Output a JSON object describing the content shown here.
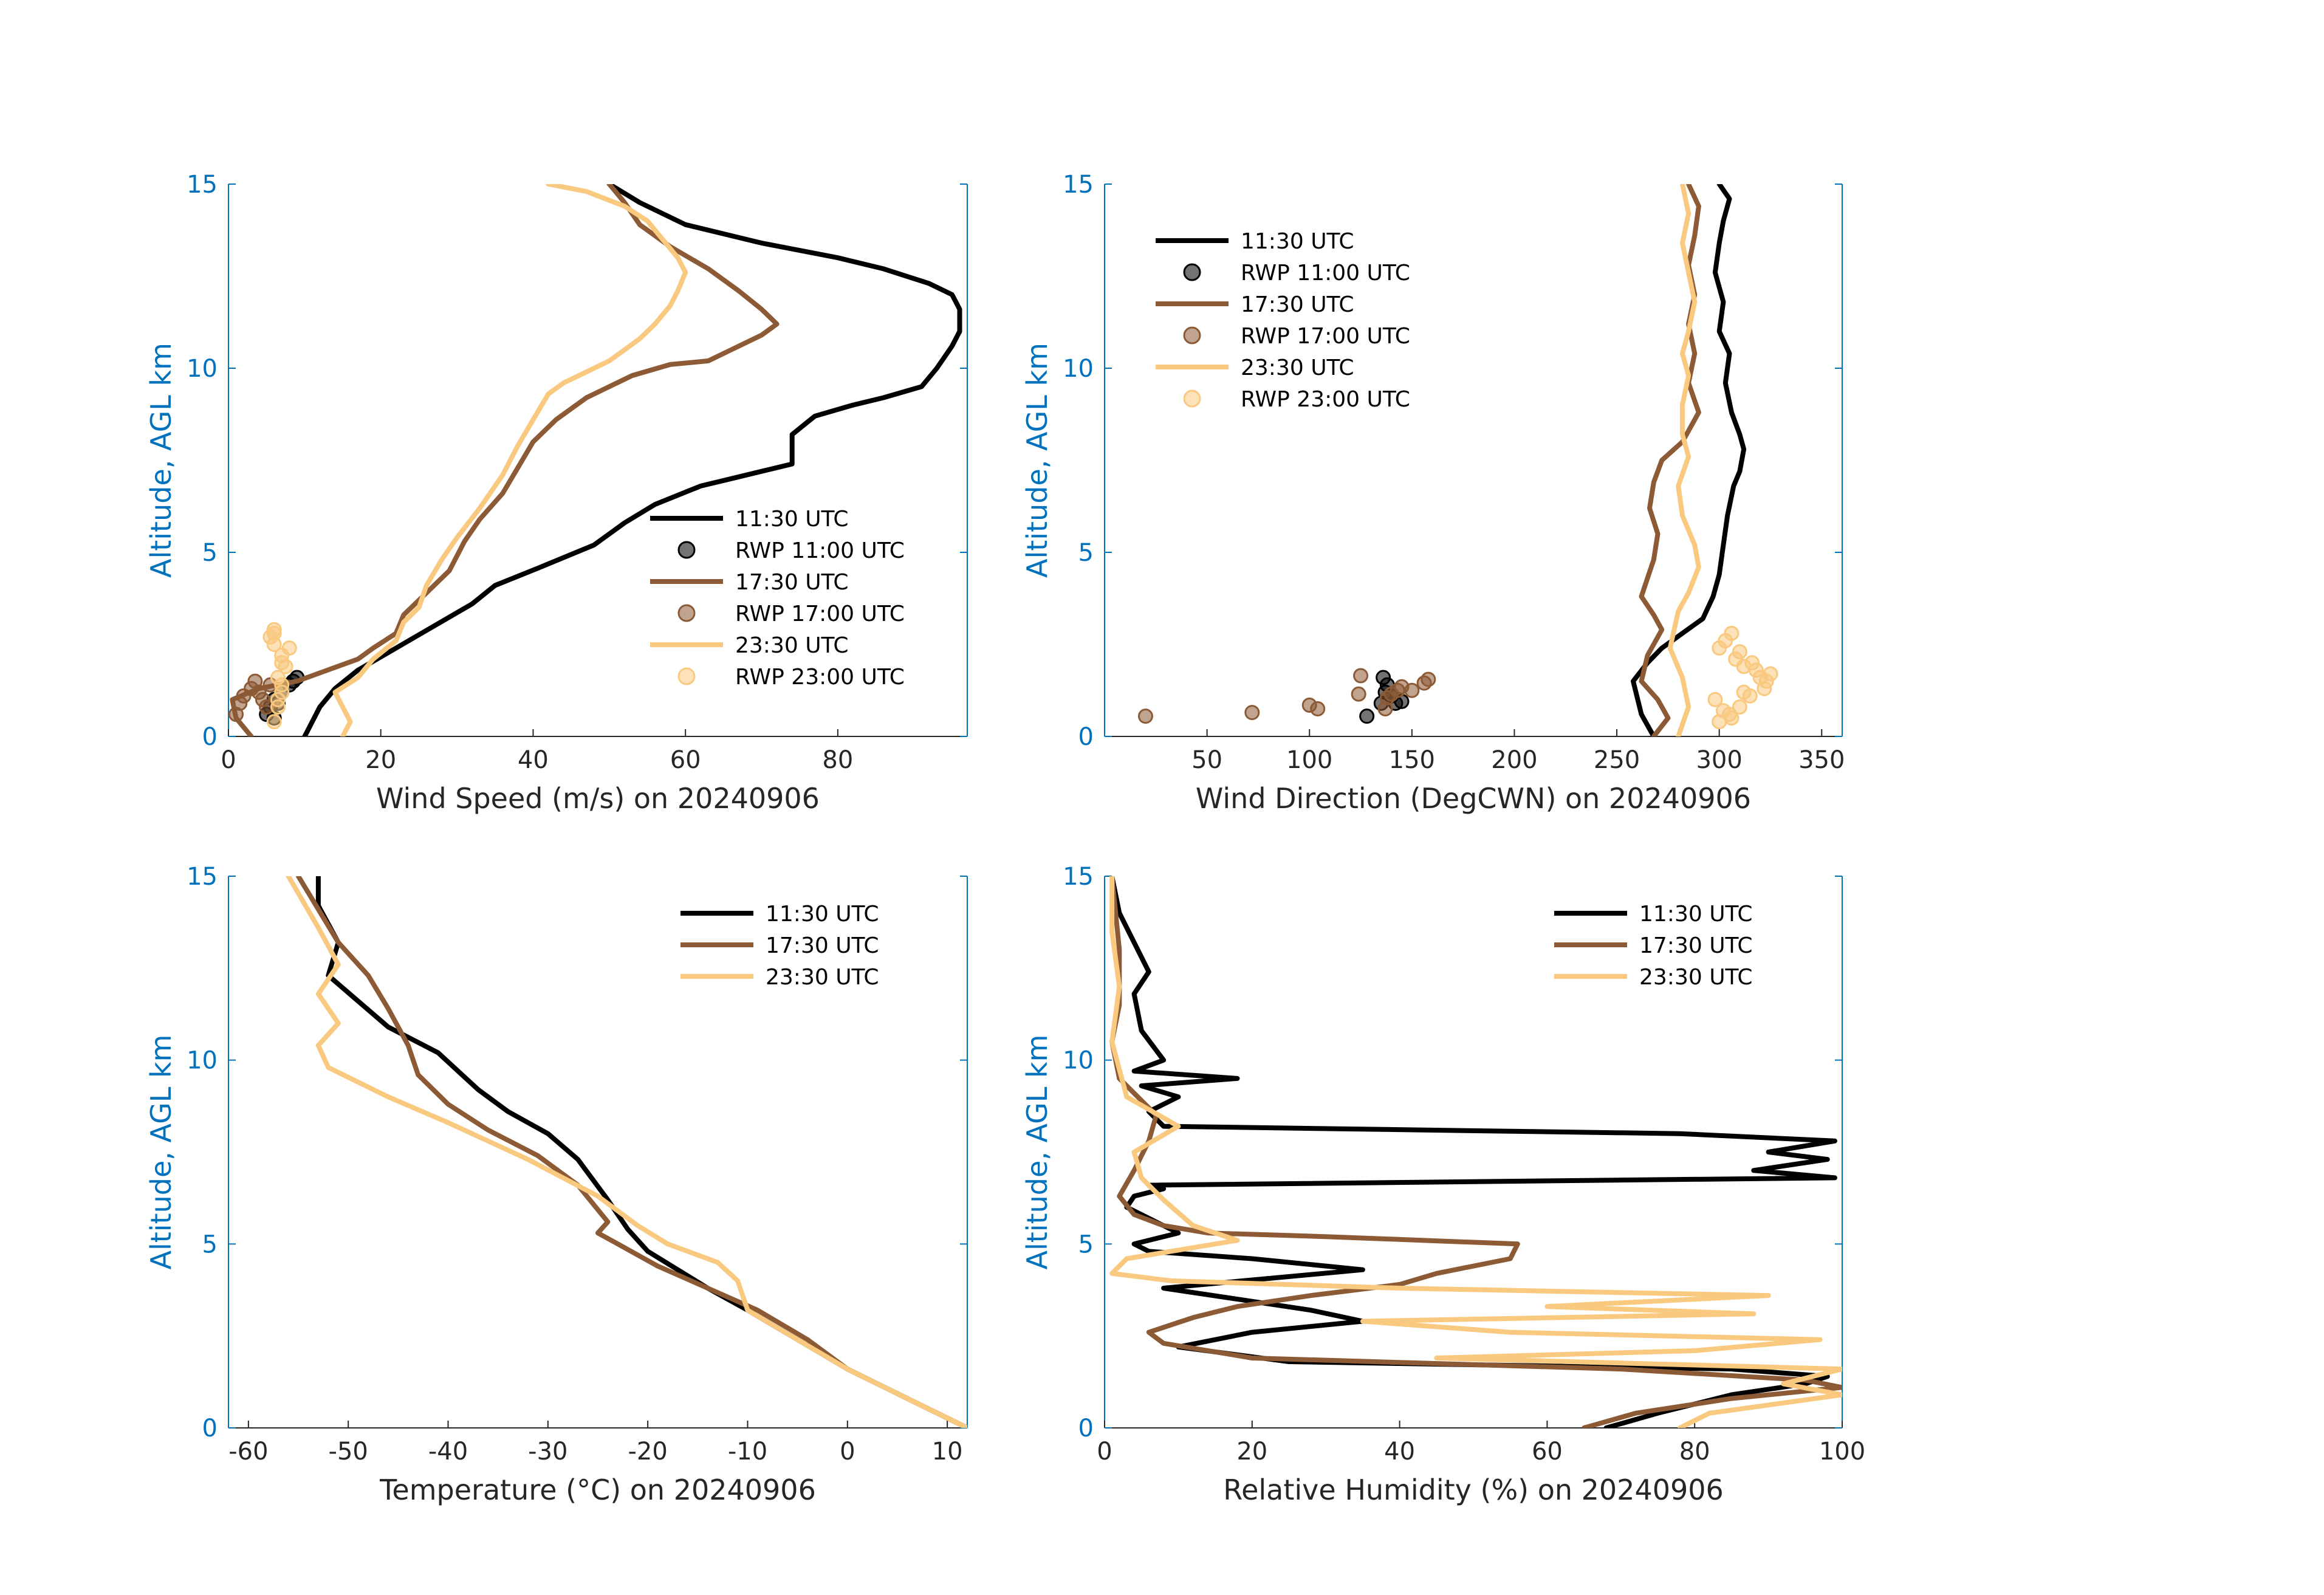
{
  "colors": {
    "c1130": "#000000",
    "c1730": "#8c5a35",
    "c2330": "#f9c97f",
    "axis_y": "#0072bd",
    "axis_x": "#262626"
  },
  "chart_data": [
    {
      "id": "ws",
      "type": "line",
      "xlabel": "Wind Speed (m/s) on 20240906",
      "ylabel": "Altitude, AGL km",
      "xlim": [
        0,
        97
      ],
      "ylim": [
        0,
        15
      ],
      "xticks": [
        0,
        20,
        40,
        60,
        80
      ],
      "xtick_labels": [
        "0",
        "20",
        "40",
        "60",
        "80"
      ],
      "yticks": [
        0,
        5,
        10,
        15
      ],
      "ytick_labels": [
        "0",
        "5",
        "10",
        "15"
      ],
      "legend": {
        "position": "lower-right",
        "entries": [
          "11:30 UTC",
          "RWP 11:00 UTC",
          "17:30 UTC",
          "RWP 17:00 UTC",
          "23:30 UTC",
          "RWP 23:00 UTC"
        ]
      },
      "series": [
        {
          "name": "11:30 UTC",
          "color": "#000000",
          "x": [
            10,
            11,
            12,
            14,
            17,
            22,
            27,
            32,
            35,
            41,
            48,
            52,
            56,
            62,
            66,
            70,
            74,
            74,
            77,
            82,
            86,
            91,
            93,
            95,
            96,
            96,
            95,
            92,
            86,
            80,
            70,
            60,
            54,
            50
          ],
          "y": [
            0,
            0.4,
            0.8,
            1.3,
            1.8,
            2.4,
            3.0,
            3.6,
            4.1,
            4.6,
            5.2,
            5.8,
            6.3,
            6.8,
            7.0,
            7.2,
            7.4,
            8.2,
            8.7,
            9.0,
            9.2,
            9.5,
            10.0,
            10.6,
            11.0,
            11.6,
            12.0,
            12.3,
            12.7,
            13.0,
            13.4,
            13.9,
            14.5,
            15.0
          ]
        },
        {
          "name": "RWP 11:00 UTC",
          "color": "#000000",
          "marker": true,
          "x": [
            5,
            6,
            6.5,
            7,
            8,
            8.5,
            9,
            5.5,
            6
          ],
          "y": [
            0.6,
            0.5,
            0.9,
            1.2,
            1.4,
            1.5,
            1.6,
            0.8,
            1.0
          ]
        },
        {
          "name": "17:30 UTC",
          "color": "#8c5a35",
          "x": [
            3,
            1,
            0.5,
            4,
            9,
            13,
            17,
            19,
            22,
            23,
            26,
            29,
            31,
            33,
            36,
            38,
            40,
            43,
            47,
            53,
            58,
            63,
            66,
            70,
            72,
            70,
            67,
            63,
            58,
            54,
            52,
            50
          ],
          "y": [
            0,
            0.5,
            1.0,
            1.3,
            1.5,
            1.8,
            2.1,
            2.4,
            2.8,
            3.3,
            3.9,
            4.5,
            5.3,
            5.9,
            6.6,
            7.3,
            8.0,
            8.6,
            9.2,
            9.8,
            10.1,
            10.2,
            10.5,
            10.9,
            11.2,
            11.6,
            12.1,
            12.7,
            13.3,
            13.9,
            14.5,
            15.0
          ]
        },
        {
          "name": "RWP 17:00 UTC",
          "color": "#8c5a35",
          "marker": true,
          "x": [
            1,
            1.5,
            2,
            3,
            3.5,
            4,
            4.5,
            5,
            5.5
          ],
          "y": [
            0.6,
            0.9,
            1.1,
            1.3,
            1.5,
            1.2,
            1.0,
            0.8,
            1.4
          ]
        },
        {
          "name": "23:30 UTC",
          "color": "#f9c97f",
          "x": [
            15,
            16,
            15,
            14,
            17,
            19,
            22,
            23,
            25,
            26,
            28,
            30,
            33,
            36,
            38,
            40,
            42,
            44,
            47,
            50,
            52,
            54,
            56,
            58,
            59,
            60,
            59,
            57,
            55,
            52,
            47,
            42
          ],
          "y": [
            0,
            0.4,
            0.8,
            1.2,
            1.6,
            2.1,
            2.6,
            3.1,
            3.5,
            4.1,
            4.8,
            5.4,
            6.2,
            7.1,
            7.9,
            8.6,
            9.3,
            9.6,
            9.9,
            10.2,
            10.5,
            10.8,
            11.2,
            11.7,
            12.1,
            12.6,
            13.0,
            13.5,
            14.0,
            14.4,
            14.8,
            15.0
          ]
        },
        {
          "name": "RWP 23:00 UTC",
          "color": "#f9c97f",
          "marker": true,
          "x": [
            6,
            6.5,
            7,
            6.5,
            7.5,
            7,
            6,
            5.5,
            6,
            6.5,
            7,
            8,
            7,
            6
          ],
          "y": [
            0.4,
            0.8,
            1.2,
            1.6,
            1.9,
            2.2,
            2.5,
            2.7,
            2.9,
            1.0,
            1.4,
            2.4,
            2.0,
            2.8
          ]
        }
      ]
    },
    {
      "id": "wd",
      "type": "line",
      "xlabel": "Wind Direction (DegCWN) on 20240906",
      "ylabel": "Altitude, AGL km",
      "xlim": [
        0,
        360
      ],
      "ylim": [
        0,
        15
      ],
      "xticks": [
        50,
        100,
        150,
        200,
        250,
        300,
        350
      ],
      "xtick_labels": [
        "50",
        "100",
        "150",
        "200",
        "250",
        "300",
        "350"
      ],
      "yticks": [
        0,
        5,
        10,
        15
      ],
      "ytick_labels": [
        "0",
        "5",
        "10",
        "15"
      ],
      "legend": {
        "position": "top-left",
        "entries": [
          "11:30 UTC",
          "RWP 11:00 UTC",
          "17:30 UTC",
          "RWP 17:00 UTC",
          "23:30 UTC",
          "RWP 23:00 UTC"
        ]
      },
      "series": [
        {
          "name": "11:30 UTC",
          "color": "#000000",
          "x": [
            268,
            262,
            258,
            265,
            272,
            282,
            292,
            297,
            300,
            302,
            304,
            307,
            310,
            312,
            310,
            306,
            303,
            305,
            300,
            302,
            298,
            300,
            302,
            305,
            300
          ],
          "y": [
            0,
            0.6,
            1.5,
            2.0,
            2.4,
            2.8,
            3.2,
            3.8,
            4.4,
            5.2,
            6.0,
            6.8,
            7.2,
            7.8,
            8.2,
            8.8,
            9.6,
            10.4,
            11.0,
            11.8,
            12.6,
            13.4,
            14.0,
            14.6,
            15.0
          ]
        },
        {
          "name": "RWP 11:00 UTC",
          "color": "#000000",
          "marker": true,
          "x": [
            128,
            135,
            137,
            138,
            140,
            142,
            145,
            136
          ],
          "y": [
            0.55,
            0.9,
            1.2,
            1.4,
            1.1,
            0.9,
            0.95,
            1.6
          ]
        },
        {
          "name": "17:30 UTC",
          "color": "#8c5a35",
          "x": [
            268,
            275,
            270,
            262,
            265,
            272,
            268,
            262,
            265,
            268,
            270,
            266,
            268,
            272,
            282,
            290,
            285,
            288,
            285,
            288,
            285,
            288,
            290,
            285
          ],
          "y": [
            0,
            0.5,
            1.0,
            1.5,
            2.2,
            2.9,
            3.3,
            3.8,
            4.3,
            4.8,
            5.5,
            6.2,
            6.9,
            7.5,
            8.0,
            8.8,
            9.6,
            10.4,
            11.2,
            12.0,
            12.8,
            13.6,
            14.4,
            15.0
          ]
        },
        {
          "name": "RWP 17:00 UTC",
          "color": "#8c5a35",
          "marker": true,
          "x": [
            20,
            72,
            100,
            104,
            124,
            125,
            138,
            140,
            145,
            150,
            156,
            158,
            143,
            137
          ],
          "y": [
            0.55,
            0.65,
            0.85,
            0.75,
            1.15,
            1.65,
            1.05,
            1.15,
            1.35,
            1.25,
            1.45,
            1.55,
            1.25,
            0.75
          ]
        },
        {
          "name": "23:30 UTC",
          "color": "#f9c97f",
          "x": [
            280,
            285,
            282,
            276,
            280,
            285,
            290,
            288,
            282,
            280,
            285,
            282,
            282,
            285,
            282,
            285,
            288,
            285,
            282,
            285,
            282
          ],
          "y": [
            0,
            0.8,
            1.6,
            2.4,
            3.4,
            3.9,
            4.6,
            5.2,
            6.0,
            6.8,
            7.6,
            8.2,
            9.0,
            9.8,
            10.4,
            11.0,
            11.8,
            12.6,
            13.4,
            14.2,
            15.0
          ]
        },
        {
          "name": "RWP 23:00 UTC",
          "color": "#f9c97f",
          "marker": true,
          "x": [
            300,
            305,
            310,
            315,
            322,
            320,
            312,
            308,
            300,
            303,
            306,
            310,
            316,
            318,
            298,
            302,
            325,
            323,
            306,
            312
          ],
          "y": [
            0.4,
            0.6,
            0.8,
            1.1,
            1.3,
            1.6,
            1.9,
            2.1,
            2.4,
            2.6,
            2.8,
            2.3,
            2.0,
            1.8,
            1.0,
            0.7,
            1.7,
            1.5,
            0.5,
            1.2
          ]
        }
      ]
    },
    {
      "id": "temp",
      "type": "line",
      "xlabel": "Temperature (°C) on 20240906",
      "ylabel": "Altitude, AGL km",
      "xlim": [
        -62,
        12
      ],
      "ylim": [
        0,
        15
      ],
      "xticks": [
        -60,
        -50,
        -40,
        -30,
        -20,
        -10,
        0,
        10
      ],
      "xtick_labels": [
        "-60",
        "-50",
        "-40",
        "-30",
        "-20",
        "-10",
        "0",
        "10"
      ],
      "yticks": [
        0,
        5,
        10,
        15
      ],
      "ytick_labels": [
        "0",
        "5",
        "10",
        "15"
      ],
      "legend": {
        "position": "top-right",
        "entries": [
          "11:30 UTC",
          "17:30 UTC",
          "23:30 UTC"
        ]
      },
      "series": [
        {
          "name": "11:30 UTC",
          "color": "#000000",
          "x": [
            12,
            6,
            0,
            -5,
            -10,
            -14,
            -17,
            -20,
            -22,
            -24,
            -27,
            -30,
            -34,
            -37,
            -41,
            -46,
            -49,
            -52,
            -51,
            -53,
            -53
          ],
          "y": [
            0,
            0.8,
            1.6,
            2.4,
            3.2,
            3.8,
            4.3,
            4.8,
            5.4,
            6.2,
            7.3,
            8.0,
            8.6,
            9.2,
            10.2,
            10.9,
            11.6,
            12.3,
            13.2,
            14.2,
            15.0
          ]
        },
        {
          "name": "17:30 UTC",
          "color": "#8c5a35",
          "x": [
            12,
            6,
            0,
            -4,
            -9,
            -14,
            -19,
            -23,
            -25,
            -24,
            -27,
            -31,
            -36,
            -40,
            -43,
            -44,
            -46,
            -48,
            -51,
            -53,
            -55
          ],
          "y": [
            0,
            0.8,
            1.6,
            2.4,
            3.2,
            3.8,
            4.4,
            5.0,
            5.3,
            5.6,
            6.6,
            7.4,
            8.1,
            8.8,
            9.6,
            10.4,
            11.4,
            12.3,
            13.2,
            14.1,
            15.0
          ]
        },
        {
          "name": "23:30 UTC",
          "color": "#f9c97f",
          "x": [
            12,
            6,
            0,
            -5,
            -10,
            -11,
            -13,
            -18,
            -21,
            -25,
            -32,
            -40,
            -46,
            -52,
            -53,
            -51,
            -53,
            -51,
            -53,
            -56
          ],
          "y": [
            0,
            0.8,
            1.6,
            2.4,
            3.2,
            4.0,
            4.5,
            5.0,
            5.5,
            6.3,
            7.3,
            8.3,
            9.0,
            9.8,
            10.4,
            11.0,
            11.8,
            12.6,
            13.6,
            15.0
          ]
        }
      ]
    },
    {
      "id": "rh",
      "type": "line",
      "xlabel": "Relative Humidity (%) on 20240906",
      "ylabel": "Altitude, AGL km",
      "xlim": [
        0,
        100
      ],
      "ylim": [
        0,
        15
      ],
      "xticks": [
        0,
        20,
        40,
        60,
        80,
        100
      ],
      "xtick_labels": [
        "0",
        "20",
        "40",
        "60",
        "80",
        "100"
      ],
      "yticks": [
        0,
        5,
        10,
        15
      ],
      "ytick_labels": [
        "0",
        "5",
        "10",
        "15"
      ],
      "legend": {
        "position": "top-right",
        "entries": [
          "11:30 UTC",
          "17:30 UTC",
          "23:30 UTC"
        ]
      },
      "series": [
        {
          "name": "11:30 UTC",
          "color": "#000000",
          "x": [
            68,
            75,
            85,
            95,
            98,
            85,
            25,
            10,
            20,
            35,
            28,
            18,
            8,
            35,
            20,
            6,
            4,
            10,
            6,
            3,
            4,
            8,
            6,
            99,
            88,
            98,
            90,
            99,
            78,
            8,
            6,
            10,
            5,
            18,
            4,
            8,
            5,
            4,
            6,
            2,
            1
          ],
          "y": [
            0,
            0.4,
            0.9,
            1.2,
            1.4,
            1.6,
            1.8,
            2.2,
            2.6,
            2.9,
            3.2,
            3.5,
            3.8,
            4.3,
            4.6,
            4.8,
            5.0,
            5.3,
            5.7,
            6.0,
            6.3,
            6.5,
            6.6,
            6.8,
            7.0,
            7.3,
            7.5,
            7.8,
            8.0,
            8.2,
            8.6,
            9.0,
            9.3,
            9.5,
            9.7,
            10.0,
            10.8,
            11.8,
            12.4,
            14.0,
            15.0
          ]
        },
        {
          "name": "17:30 UTC",
          "color": "#8c5a35",
          "x": [
            65,
            72,
            85,
            100,
            95,
            70,
            20,
            8,
            6,
            12,
            18,
            28,
            40,
            45,
            55,
            56,
            30,
            14,
            8,
            4,
            2,
            4,
            6,
            7,
            2,
            1,
            2,
            2,
            1
          ],
          "y": [
            0,
            0.4,
            0.8,
            1.1,
            1.3,
            1.6,
            1.9,
            2.3,
            2.6,
            3.0,
            3.3,
            3.6,
            3.9,
            4.2,
            4.6,
            5.0,
            5.2,
            5.3,
            5.5,
            5.8,
            6.3,
            7.0,
            7.8,
            8.5,
            9.5,
            10.5,
            11.5,
            13.0,
            15.0
          ]
        },
        {
          "name": "23:30 UTC",
          "color": "#f9c97f",
          "x": [
            78,
            82,
            100,
            92,
            100,
            45,
            80,
            97,
            55,
            35,
            88,
            60,
            90,
            40,
            9,
            1,
            3,
            18,
            12,
            8,
            5,
            4,
            10,
            3,
            1,
            2,
            1,
            1
          ],
          "y": [
            0,
            0.4,
            0.9,
            1.2,
            1.6,
            1.9,
            2.1,
            2.4,
            2.6,
            2.9,
            3.1,
            3.3,
            3.6,
            3.8,
            4.0,
            4.2,
            4.6,
            5.1,
            5.5,
            6.2,
            6.8,
            7.5,
            8.2,
            9.0,
            10.5,
            12.0,
            13.5,
            15.0
          ]
        }
      ]
    }
  ]
}
